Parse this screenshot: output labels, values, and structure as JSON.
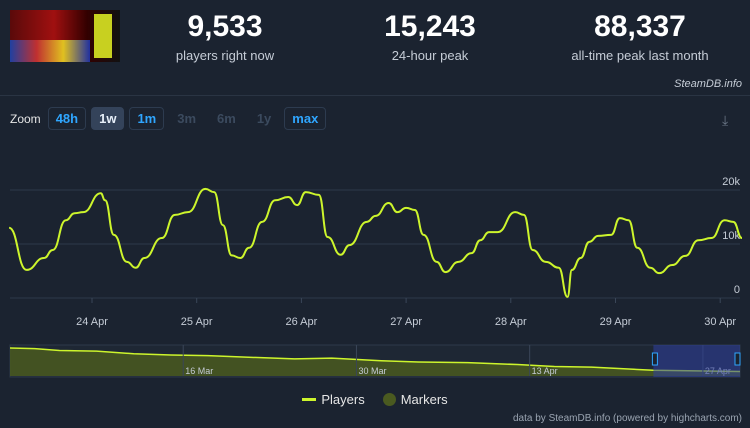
{
  "header": {
    "stats": [
      {
        "value": "9,533",
        "label": "players right now"
      },
      {
        "value": "15,243",
        "label": "24-hour peak"
      },
      {
        "value": "88,337",
        "label": "all-time peak last month"
      }
    ],
    "credit": "SteamDB.info"
  },
  "zoom": {
    "label": "Zoom",
    "buttons": [
      {
        "label": "48h",
        "state": "enabled"
      },
      {
        "label": "1w",
        "state": "selected"
      },
      {
        "label": "1m",
        "state": "enabled"
      },
      {
        "label": "3m",
        "state": "disabled"
      },
      {
        "label": "6m",
        "state": "disabled"
      },
      {
        "label": "1y",
        "state": "disabled"
      },
      {
        "label": "max",
        "state": "enabled"
      }
    ]
  },
  "legend": {
    "players": "Players",
    "markers": "Markers"
  },
  "footer": "data by SteamDB.info (powered by highcharts.com)",
  "colors": {
    "line": "#cdf52c",
    "marker": "#4a5a20",
    "background": "#1b2330",
    "accent": "#2fa6ff"
  },
  "chart_data": {
    "type": "line",
    "series": [
      {
        "name": "Players",
        "points": [
          [
            "Apr 23 05:00",
            13000
          ],
          [
            "Apr 23 09:00",
            5200
          ],
          [
            "Apr 23 13:00",
            7400
          ],
          [
            "Apr 23 15:00",
            8900
          ],
          [
            "Apr 23 18:00",
            14400
          ],
          [
            "Apr 23 20:00",
            15700
          ],
          [
            "Apr 23 22:00",
            15900
          ],
          [
            "Apr 24 02:00",
            19400
          ],
          [
            "Apr 24 03:00",
            18100
          ],
          [
            "Apr 24 05:00",
            11700
          ],
          [
            "Apr 24 08:00",
            6700
          ],
          [
            "Apr 24 10:00",
            5600
          ],
          [
            "Apr 24 12:00",
            7400
          ],
          [
            "Apr 24 16:00",
            11100
          ],
          [
            "Apr 24 19:00",
            15400
          ],
          [
            "Apr 24 22:00",
            15900
          ],
          [
            "Apr 25 02:00",
            20200
          ],
          [
            "Apr 25 04:00",
            19600
          ],
          [
            "Apr 25 06:00",
            13500
          ],
          [
            "Apr 25 08:00",
            7900
          ],
          [
            "Apr 25 10:00",
            7400
          ],
          [
            "Apr 25 12:00",
            9300
          ],
          [
            "Apr 25 15:00",
            14100
          ],
          [
            "Apr 25 18:00",
            18100
          ],
          [
            "Apr 25 21:00",
            18700
          ],
          [
            "Apr 25 23:00",
            17200
          ],
          [
            "Apr 26 01:00",
            19600
          ],
          [
            "Apr 26 04:00",
            19100
          ],
          [
            "Apr 26 06:00",
            11300
          ],
          [
            "Apr 26 09:00",
            8000
          ],
          [
            "Apr 26 11:00",
            9800
          ],
          [
            "Apr 26 15:00",
            14100
          ],
          [
            "Apr 26 17:00",
            15200
          ],
          [
            "Apr 26 20:00",
            17600
          ],
          [
            "Apr 26 22:00",
            15900
          ],
          [
            "Apr 27 00:00",
            16700
          ],
          [
            "Apr 27 02:00",
            16300
          ],
          [
            "Apr 27 04:00",
            11700
          ],
          [
            "Apr 27 07:00",
            6700
          ],
          [
            "Apr 27 09:00",
            4800
          ],
          [
            "Apr 27 12:00",
            6700
          ],
          [
            "Apr 27 15:00",
            8300
          ],
          [
            "Apr 27 17:00",
            10700
          ],
          [
            "Apr 27 19:00",
            12200
          ],
          [
            "Apr 27 21:00",
            12200
          ],
          [
            "Apr 28 01:00",
            15900
          ],
          [
            "Apr 28 03:00",
            15400
          ],
          [
            "Apr 28 05:00",
            8900
          ],
          [
            "Apr 28 08:00",
            6700
          ],
          [
            "Apr 28 11:00",
            5600
          ],
          [
            "Apr 28 13:00",
            200
          ],
          [
            "Apr 28 14:00",
            5200
          ],
          [
            "Apr 28 16:00",
            7400
          ],
          [
            "Apr 28 18:00",
            10400
          ],
          [
            "Apr 28 20:00",
            11500
          ],
          [
            "Apr 28 23:00",
            11700
          ],
          [
            "Apr 29 01:00",
            14800
          ],
          [
            "Apr 29 03:00",
            14400
          ],
          [
            "Apr 29 05:00",
            9300
          ],
          [
            "Apr 29 08:00",
            5600
          ],
          [
            "Apr 29 10:00",
            4600
          ],
          [
            "Apr 29 13:00",
            6100
          ],
          [
            "Apr 29 16:00",
            7800
          ],
          [
            "Apr 29 19:00",
            10700
          ],
          [
            "Apr 29 22:00",
            11100
          ],
          [
            "Apr 30 01:00",
            14400
          ],
          [
            "Apr 30 03:00",
            14100
          ],
          [
            "Apr 30 05:00",
            11100
          ]
        ]
      }
    ],
    "x_ticks": [
      "24 Apr",
      "25 Apr",
      "26 Apr",
      "27 Apr",
      "28 Apr",
      "29 Apr",
      "30 Apr"
    ],
    "y_ticks": [
      "0",
      "10k",
      "20k"
    ],
    "ylim": [
      0,
      30000
    ],
    "grid": true,
    "legend": "bottom",
    "navigator": {
      "ticks": [
        "16 Mar",
        "30 Mar",
        "13 Apr",
        "27 Apr"
      ],
      "points": [
        [
          "Mar 2",
          88000
        ],
        [
          "Mar 4",
          86000
        ],
        [
          "Mar 6",
          80000
        ],
        [
          "Mar 9",
          78000
        ],
        [
          "Mar 12",
          70000
        ],
        [
          "Mar 15",
          66000
        ],
        [
          "Mar 18",
          64000
        ],
        [
          "Mar 22",
          58000
        ],
        [
          "Mar 25",
          54000
        ],
        [
          "Mar 28",
          56000
        ],
        [
          "Apr 1",
          48000
        ],
        [
          "Apr 4",
          44000
        ],
        [
          "Apr 8",
          42000
        ],
        [
          "Apr 12",
          36000
        ],
        [
          "Apr 15",
          30000
        ],
        [
          "Apr 18",
          28000
        ],
        [
          "Apr 21",
          22000
        ],
        [
          "Apr 23",
          18000
        ],
        [
          "Apr 30",
          14000
        ]
      ],
      "selected_range": [
        "Apr 23",
        "Apr 30"
      ]
    }
  }
}
